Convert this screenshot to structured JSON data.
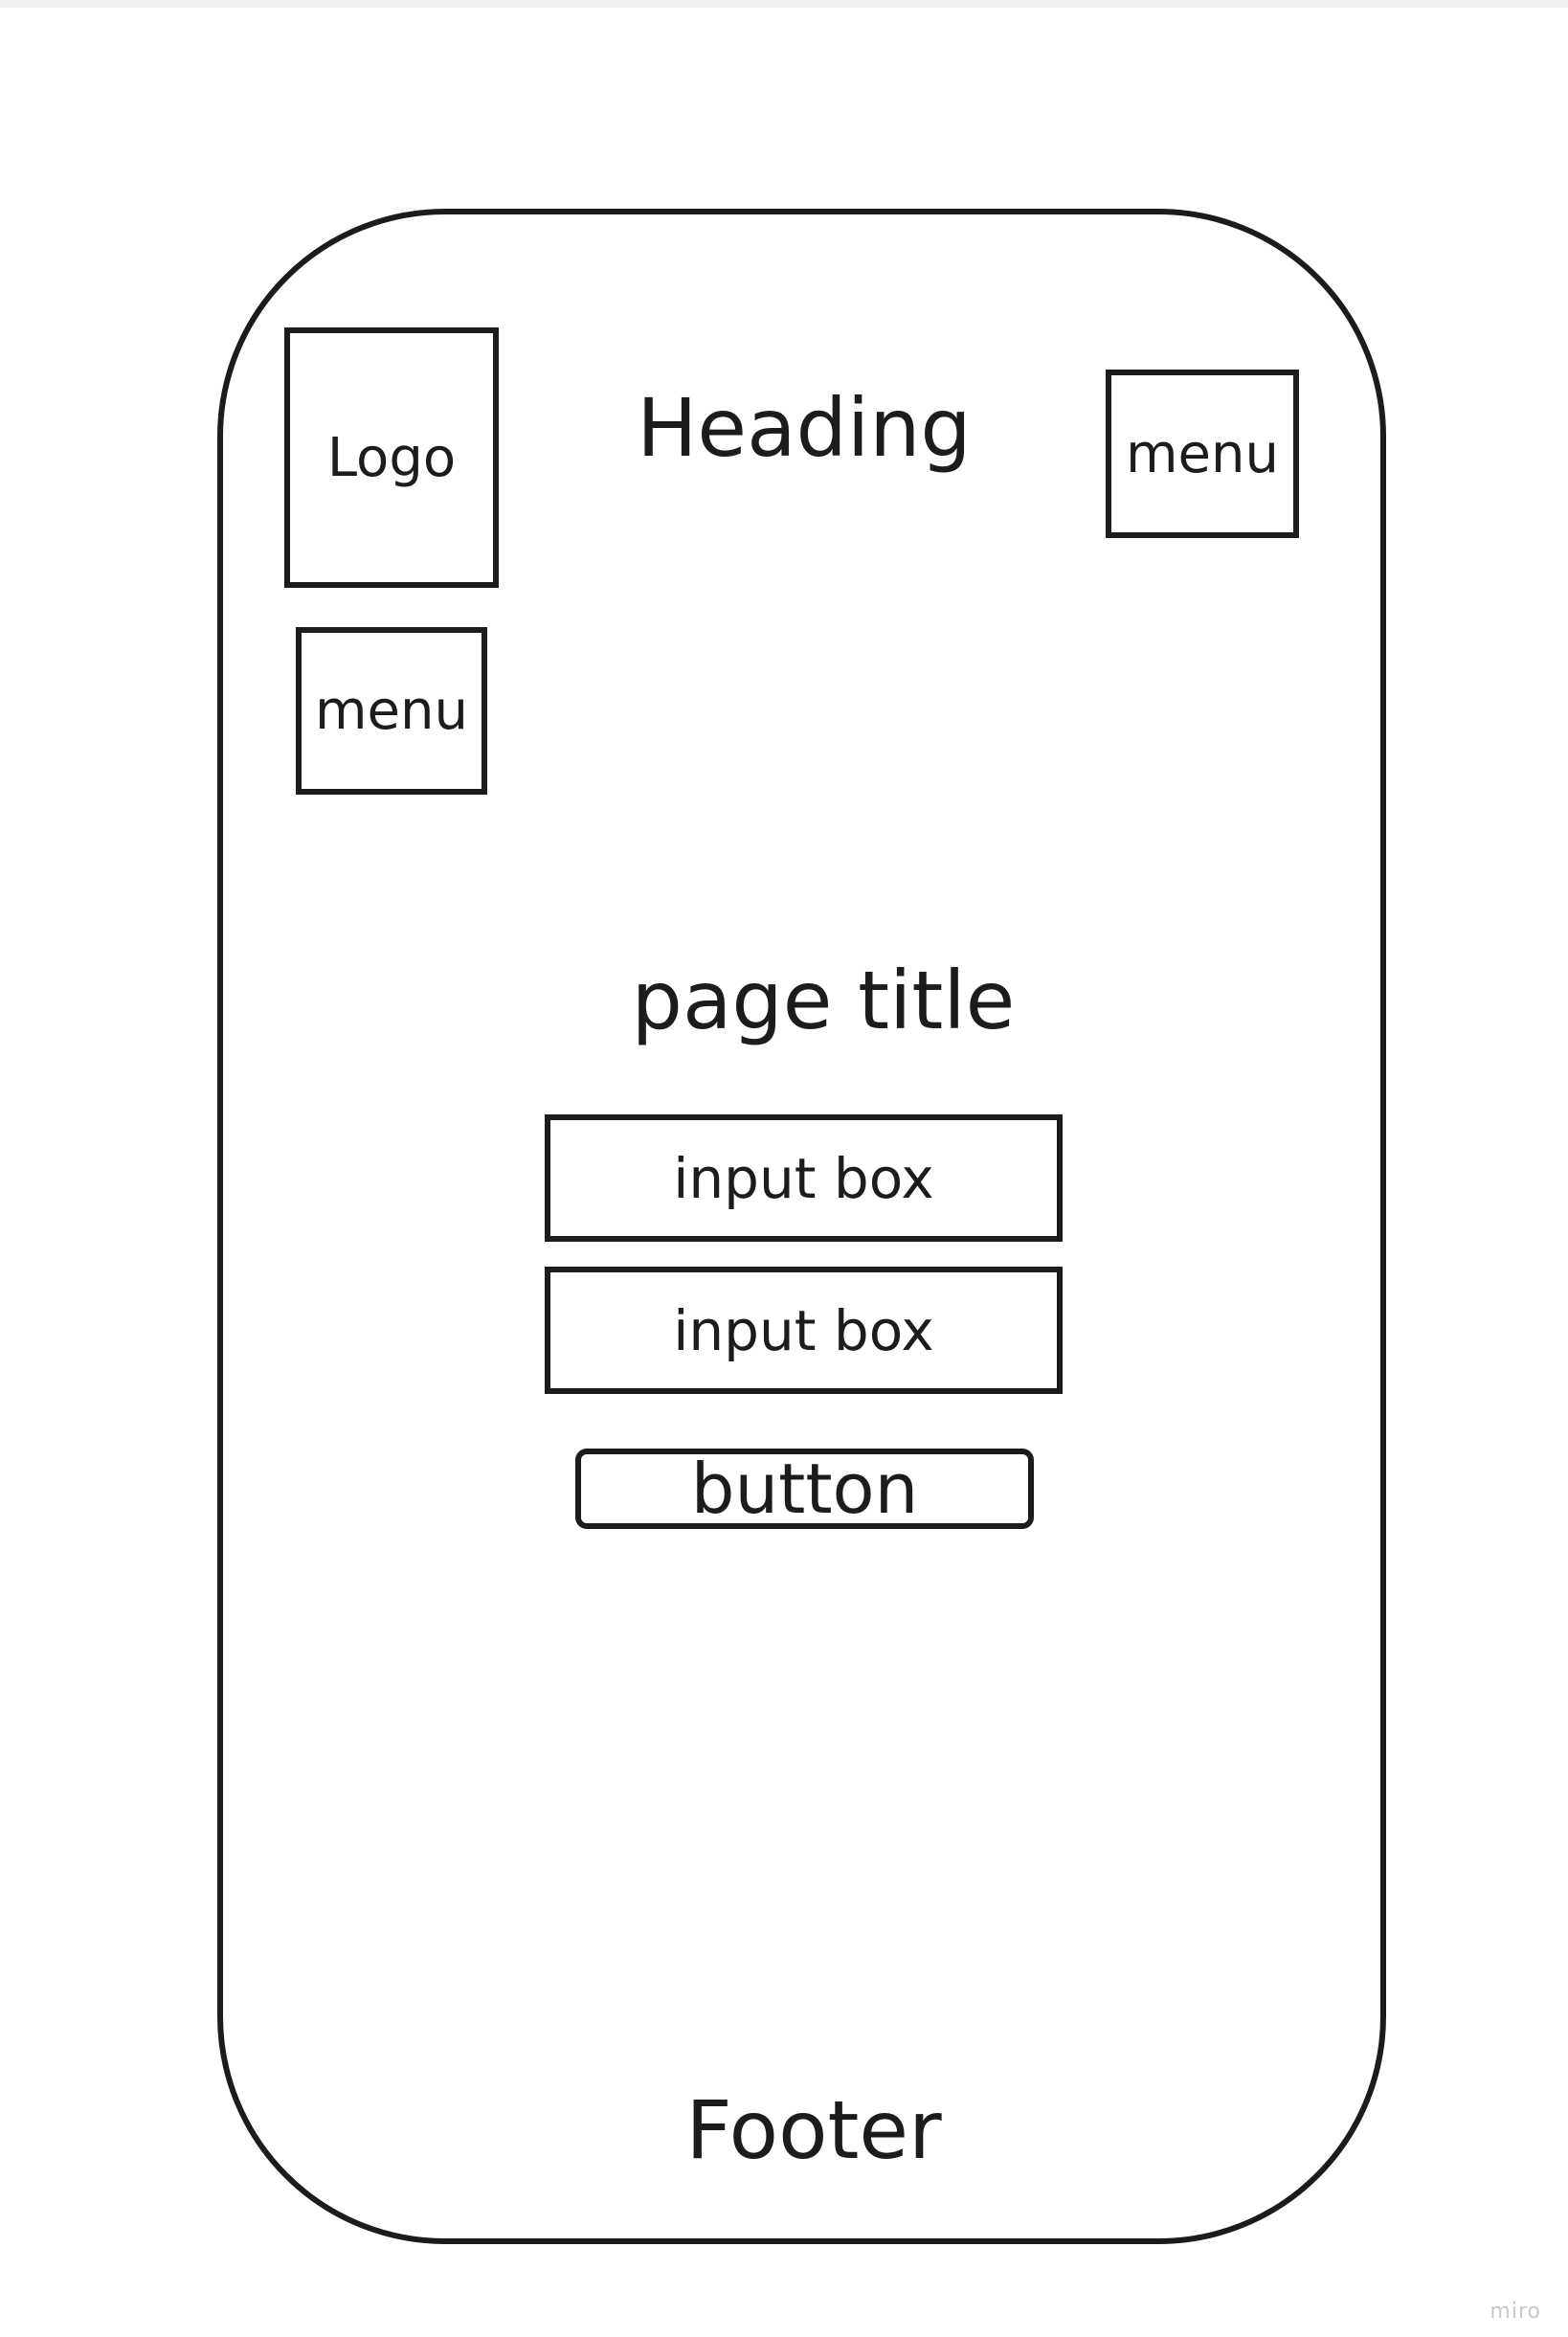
{
  "wireframe": {
    "logo_label": "Logo",
    "heading": "Heading",
    "menu_right_label": "menu",
    "menu_left_label": "menu",
    "page_title": "page title",
    "inputs": [
      {
        "label": "input box"
      },
      {
        "label": "input box"
      }
    ],
    "button_label": "button",
    "footer": "Footer"
  },
  "watermark": "miro"
}
